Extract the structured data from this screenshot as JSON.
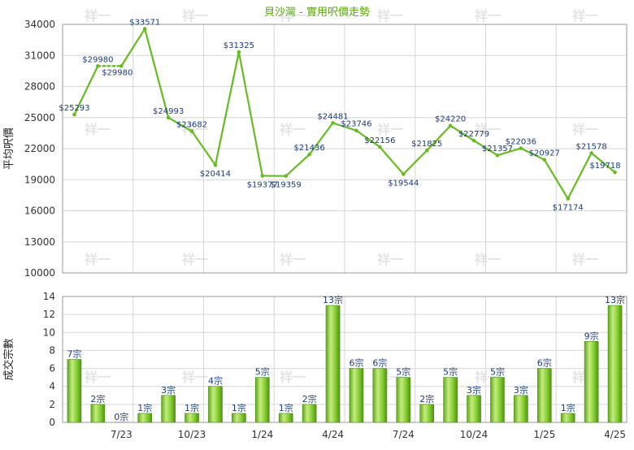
{
  "chart_data": [
    {
      "type": "line",
      "title": "貝沙灣 - 實用呎價走勢",
      "ylabel": "平均呎價",
      "ylim": [
        10000,
        34000
      ],
      "yticks": [
        10000,
        13000,
        16000,
        19000,
        22000,
        25000,
        28000,
        31000,
        34000
      ],
      "grid": true,
      "color": "#66bb22",
      "points": [
        25293,
        29980,
        29980,
        33571,
        24993,
        23682,
        20414,
        31325,
        19377,
        19359,
        21436,
        24481,
        23746,
        22156,
        19544,
        21825,
        24220,
        22779,
        21357,
        22036,
        20927,
        17174,
        21578,
        19718
      ],
      "labels": [
        "$25293",
        "$29980",
        "$29980",
        "$33571",
        "$24993",
        "$23682",
        "$20414",
        "$31325",
        "$19377",
        "$19359",
        "$21436",
        "$24481",
        "$23746",
        "$22156",
        "$19544",
        "$21825",
        "$24220",
        "$22779",
        "$21357",
        "$22036",
        "$20927",
        "$17174",
        "$21578",
        "$19718"
      ],
      "gap_after_index": 1
    },
    {
      "type": "bar",
      "ylabel": "成交宗數",
      "ylim": [
        0,
        14
      ],
      "yticks": [
        0,
        2,
        4,
        6,
        8,
        10,
        12,
        14
      ],
      "grid": true,
      "color": "#66bb22",
      "values": [
        7,
        2,
        0,
        1,
        3,
        1,
        4,
        1,
        5,
        1,
        2,
        13,
        6,
        6,
        5,
        2,
        5,
        3,
        5,
        3,
        6,
        1,
        9,
        13
      ],
      "labels": [
        "7宗",
        "2宗",
        "0宗",
        "1宗",
        "3宗",
        "1宗",
        "4宗",
        "1宗",
        "5宗",
        "1宗",
        "2宗",
        "13宗",
        "6宗",
        "6宗",
        "5宗",
        "2宗",
        "5宗",
        "3宗",
        "5宗",
        "3宗",
        "6宗",
        "1宗",
        "9宗",
        "13宗"
      ],
      "xticks": [
        {
          "label": "7/23",
          "index": 2
        },
        {
          "label": "10/23",
          "index": 5
        },
        {
          "label": "1/24",
          "index": 8
        },
        {
          "label": "4/24",
          "index": 11
        },
        {
          "label": "7/24",
          "index": 14
        },
        {
          "label": "10/24",
          "index": 17
        },
        {
          "label": "1/25",
          "index": 20
        },
        {
          "label": "4/25",
          "index": 23
        }
      ]
    }
  ],
  "watermark": "祥一"
}
